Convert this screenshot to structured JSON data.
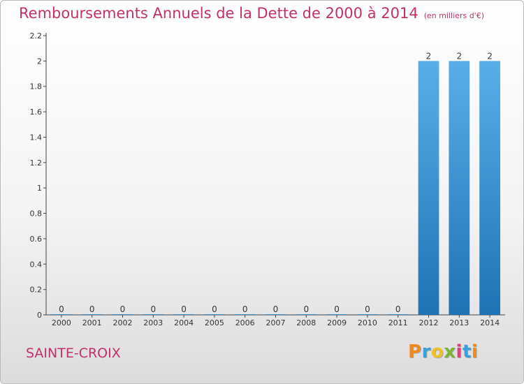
{
  "chart_data": {
    "type": "bar",
    "title": "Remboursements Annuels de la Dette de 2000 à 2014",
    "unit": "(en milliers d'€)",
    "xlabel": "",
    "ylabel": "",
    "categories": [
      "2000",
      "2001",
      "2002",
      "2003",
      "2004",
      "2005",
      "2006",
      "2007",
      "2008",
      "2009",
      "2010",
      "2011",
      "2012",
      "2013",
      "2014"
    ],
    "values": [
      0,
      0,
      0,
      0,
      0,
      0,
      0,
      0,
      0,
      0,
      0,
      0,
      2,
      2,
      2
    ],
    "data_labels": [
      "0",
      "0",
      "0",
      "0",
      "0",
      "0",
      "0",
      "0",
      "0",
      "0",
      "0",
      "0",
      "2",
      "2",
      "2"
    ],
    "ylim": [
      0,
      2.2
    ],
    "yticks": [
      0,
      0.2,
      0.4,
      0.6,
      0.8,
      1,
      1.2,
      1.4,
      1.6,
      1.8,
      2,
      2.2
    ],
    "ytick_labels": [
      "0",
      "0.2",
      "0.4",
      "0.6",
      "0.8",
      "1",
      "1.2",
      "1.4",
      "1.6",
      "1.8",
      "2",
      "2.2"
    ],
    "grid": false,
    "legend": "none",
    "bar_color_top": "#5aaee8",
    "bar_color_bottom": "#1f73b4"
  },
  "footer": {
    "commune": "SAINTE-CROIX",
    "brand_letters": [
      "P",
      "r",
      "o",
      "x",
      "i",
      "t",
      "i"
    ],
    "brand_colors": [
      "#f08a1e",
      "#3aa0dc",
      "#f0c02a",
      "#7ab43a",
      "#e0407a",
      "#3aa0dc",
      "#f08a1e"
    ]
  },
  "colors": {
    "title": "#c0306a",
    "axis": "#444444"
  }
}
